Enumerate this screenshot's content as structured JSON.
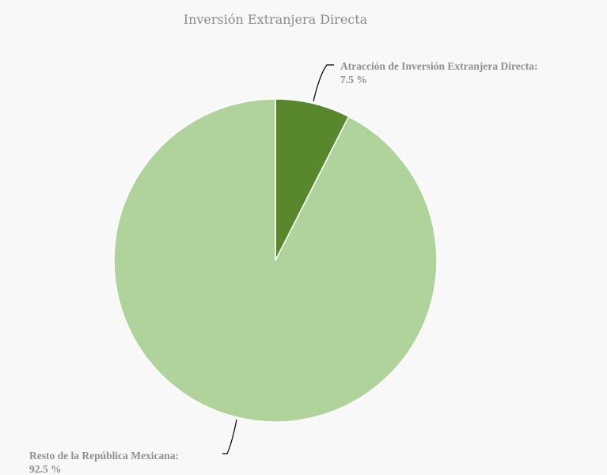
{
  "chart_data": {
    "type": "pie",
    "title": "Inversión Extranjera Directa",
    "slices": [
      {
        "label": "Atracción de Inversión Extranjera Directa:",
        "value_text": "7.5 %",
        "value": 7.5,
        "color": "#58872c"
      },
      {
        "label": "Resto de la República Mexicana:",
        "value_text": "92.5 %",
        "value": 92.5,
        "color": "#b0d29b"
      }
    ],
    "legend": "none",
    "grid": false
  }
}
